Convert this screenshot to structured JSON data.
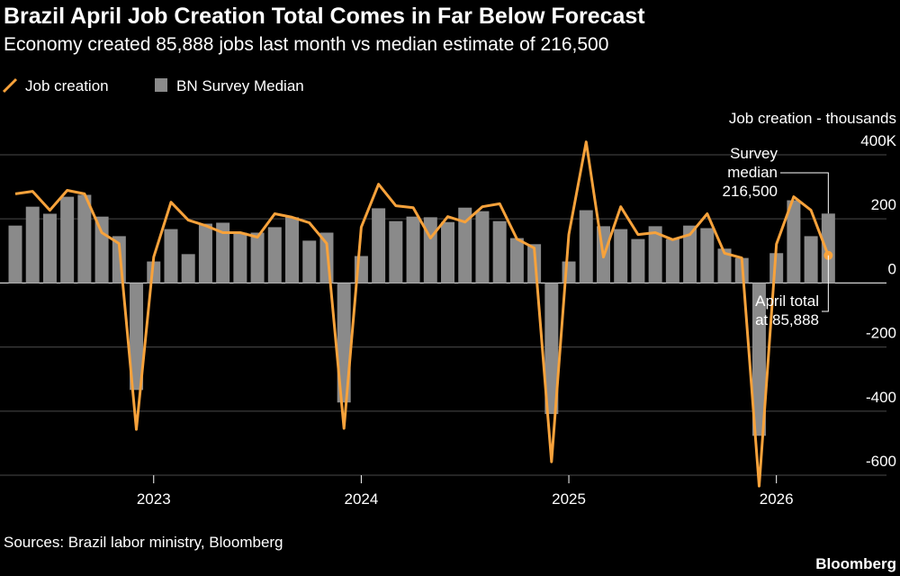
{
  "chart_data": {
    "type": "bar-line",
    "title": "Brazil April Job Creation Total Comes in Far Below Forecast",
    "subtitle": "Economy created 85,888 jobs last month vs median estimate of 216,500",
    "y_axis_label": "Job creation - thousands",
    "source": "Sources: Brazil labor ministry, Bloomberg",
    "brand": "Bloomberg",
    "categories": [
      null,
      null,
      null,
      null,
      null,
      null,
      null,
      null,
      "2023",
      null,
      null,
      null,
      null,
      null,
      null,
      null,
      null,
      null,
      null,
      null,
      "2024",
      null,
      null,
      null,
      null,
      null,
      null,
      null,
      null,
      null,
      null,
      null,
      "2025",
      null,
      null,
      null,
      null,
      null,
      null,
      null,
      null,
      null,
      null,
      null,
      "2026",
      null,
      null,
      null
    ],
    "series": [
      {
        "name": "Job creation",
        "kind": "line",
        "color": "#f7a23b",
        "values": [
          278,
          286,
          227,
          289,
          278,
          157,
          123,
          -457,
          81,
          252,
          196,
          179,
          157,
          157,
          143,
          216,
          205,
          188,
          123,
          -454,
          174,
          308,
          241,
          235,
          140,
          207,
          190,
          238,
          247,
          137,
          109,
          -558,
          151,
          440,
          81,
          238,
          151,
          157,
          135,
          151,
          216,
          93,
          78,
          -634,
          121,
          269,
          227,
          85.888
        ]
      },
      {
        "name": "BN Survey Median",
        "kind": "bar",
        "color": "#8a8a8a",
        "values": [
          179,
          238,
          216,
          269,
          275,
          207,
          146,
          -334,
          67,
          168,
          90,
          185,
          188,
          157,
          157,
          174,
          205,
          132,
          157,
          -373,
          84,
          233,
          193,
          207,
          205,
          190,
          235,
          224,
          193,
          140,
          121,
          -409,
          67,
          227,
          177,
          168,
          137,
          177,
          137,
          179,
          171,
          107,
          78,
          -477,
          93,
          258,
          146,
          216.5
        ]
      }
    ],
    "annotations": [
      {
        "lines": [
          "Survey",
          "median",
          "216,500"
        ]
      },
      {
        "lines": [
          "April total",
          "at 85,888"
        ]
      }
    ],
    "ylim": [
      -650,
      450
    ],
    "yticks": [
      {
        "value": 400,
        "label": "400K"
      },
      200,
      0,
      -200,
      -400,
      -600
    ],
    "grid": true
  }
}
